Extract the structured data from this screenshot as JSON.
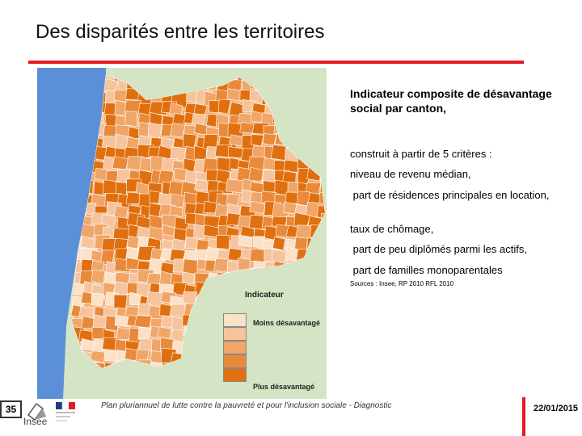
{
  "slide": {
    "title": "Des disparités entre les territoires",
    "page_number": "35",
    "footer_text": "Plan pluriannuel de lutte contre la pauvreté et pour l'inclusion sociale - Diagnostic",
    "date": "22/01/2015",
    "brand": "Insee"
  },
  "description": {
    "heading": "Indicateur composite de désavantage social par canton,",
    "intro": "construit à partir de 5 critères :",
    "criteria": [
      "niveau de revenu médian,",
      " part de résidences principales en location,",
      "taux de chômage,",
      " part de peu diplômés parmi les actifs,",
      " part de familles monoparentales"
    ],
    "source": "Sources : Insee, RP 2010 RFL 2010"
  },
  "legend": {
    "title": "Indicateur",
    "low_label": "Moins désavantagé",
    "high_label": "Plus désavantagé",
    "classes": [
      "#fbe1c8",
      "#f6c49c",
      "#f0a668",
      "#e88a3a",
      "#e0700f"
    ]
  },
  "colors": {
    "accent": "#e31b23",
    "sea": "#5b8fd8",
    "land_background": "#d4e4c4"
  }
}
